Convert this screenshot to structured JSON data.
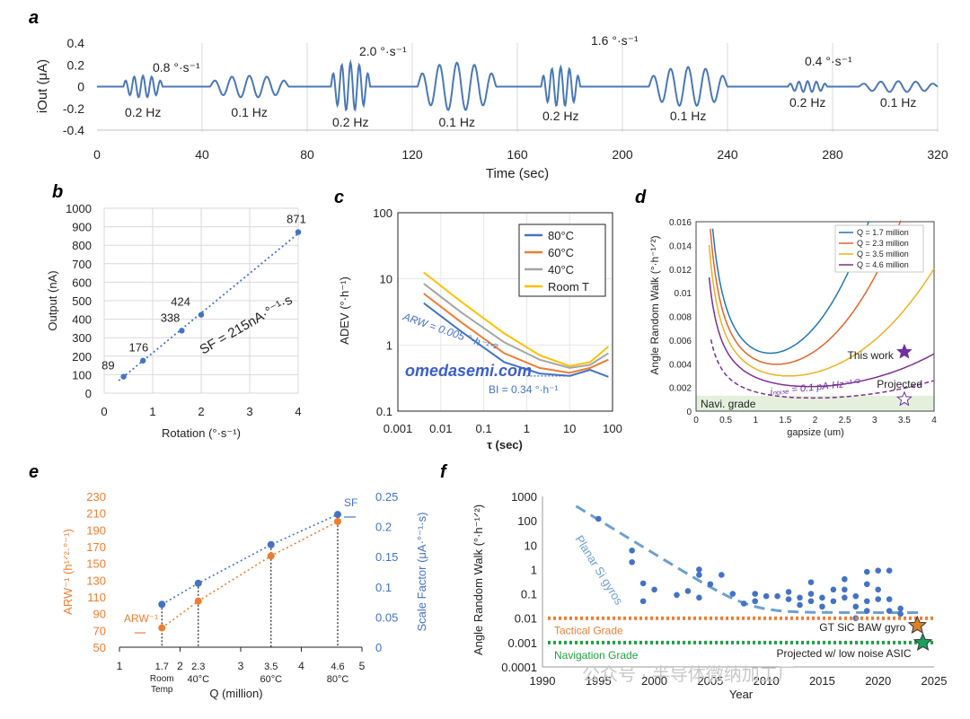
{
  "chart_data": [
    {
      "panel": "a",
      "type": "line",
      "xlabel": "Time (sec)",
      "ylabel": "iOut (μA)",
      "xlim": [
        0,
        320
      ],
      "ylim": [
        -0.4,
        0.4
      ],
      "x_ticks": [
        "0",
        "40",
        "80",
        "120",
        "160",
        "200",
        "240",
        "280",
        "320"
      ],
      "y_ticks": [
        "0.4",
        "0.2",
        "0",
        "-0.2",
        "-0.4"
      ],
      "rate_labels": [
        "0.8 °·s⁻¹",
        "2.0 °·s⁻¹",
        "1.6 °·s⁻¹",
        "0.4 °·s⁻¹"
      ],
      "segments": [
        {
          "start": 10,
          "end": 25,
          "freq_hz": 0.2,
          "amp": 0.1,
          "label": "0.2 Hz"
        },
        {
          "start": 43,
          "end": 73,
          "freq_hz": 0.1,
          "amp": 0.1,
          "label": "0.1 Hz"
        },
        {
          "start": 89,
          "end": 104,
          "freq_hz": 0.2,
          "amp": 0.22,
          "label": "0.2 Hz"
        },
        {
          "start": 122,
          "end": 152,
          "freq_hz": 0.1,
          "amp": 0.22,
          "label": "0.1 Hz"
        },
        {
          "start": 169,
          "end": 184,
          "freq_hz": 0.2,
          "amp": 0.18,
          "label": "0.2 Hz"
        },
        {
          "start": 210,
          "end": 240,
          "freq_hz": 0.1,
          "amp": 0.18,
          "label": "0.1 Hz"
        },
        {
          "start": 263,
          "end": 278,
          "freq_hz": 0.2,
          "amp": 0.05,
          "label": "0.2 Hz"
        },
        {
          "start": 290,
          "end": 320,
          "freq_hz": 0.1,
          "amp": 0.05,
          "label": "0.1 Hz"
        }
      ]
    },
    {
      "panel": "b",
      "type": "scatter",
      "xlabel": "Rotation (°·s⁻¹)",
      "ylabel": "Output (nA)",
      "xlim": [
        0,
        4
      ],
      "ylim": [
        0,
        1000
      ],
      "x_ticks": [
        "0",
        "1",
        "2",
        "3",
        "4"
      ],
      "y_ticks": [
        "1000",
        "900",
        "800",
        "700",
        "600",
        "500",
        "400",
        "300",
        "200",
        "100",
        "0"
      ],
      "x": [
        0.4,
        0.8,
        1.6,
        2.0,
        4.0
      ],
      "y": [
        89,
        176,
        338,
        424,
        871
      ],
      "point_labels": [
        "89",
        "176",
        "338",
        "424",
        "871"
      ],
      "annotation": "SF = 215nA·°⁻¹·s"
    },
    {
      "panel": "c",
      "type": "line",
      "xlabel": "τ (sec)",
      "ylabel": "ADEV (°·h⁻¹)",
      "x_ticks": [
        "0.001",
        "0.01",
        "0.1",
        "1",
        "10",
        "100"
      ],
      "y_ticks": [
        "100",
        "10",
        "1",
        "0.1"
      ],
      "series": [
        {
          "name": "80°C",
          "color": "#4472c4",
          "x": [
            0.004,
            0.03,
            0.3,
            2,
            10,
            30,
            80
          ],
          "y": [
            4.3,
            1.6,
            0.55,
            0.37,
            0.34,
            0.42,
            0.33
          ]
        },
        {
          "name": "60°C",
          "color": "#ed7d31",
          "x": [
            0.004,
            0.03,
            0.3,
            2,
            10,
            30,
            80
          ],
          "y": [
            6,
            2.2,
            0.75,
            0.45,
            0.38,
            0.45,
            0.6
          ]
        },
        {
          "name": "40°C",
          "color": "#a5a5a5",
          "x": [
            0.004,
            0.03,
            0.3,
            2,
            10,
            30,
            80
          ],
          "y": [
            8.5,
            3.1,
            1.1,
            0.6,
            0.45,
            0.5,
            0.75
          ]
        },
        {
          "name": "Room T",
          "color": "#ffc000",
          "x": [
            0.004,
            0.03,
            0.3,
            2,
            10,
            30,
            80
          ],
          "y": [
            12.5,
            4.5,
            1.5,
            0.7,
            0.48,
            0.55,
            0.95
          ]
        }
      ],
      "annotations": [
        "ARW = 0.005 °·h⁻¹ᐟ²",
        "BI = 0.34 °·h⁻¹",
        "omedasemi.com"
      ]
    },
    {
      "panel": "d",
      "type": "line",
      "xlabel": "gapsize (um)",
      "ylabel": "Angle Random Walk (°·h⁻¹ᐟ²)",
      "xlim": [
        0,
        4
      ],
      "ylim": [
        0,
        0.016
      ],
      "x_ticks": [
        "0",
        "0.5",
        "1",
        "1.5",
        "2",
        "2.5",
        "3",
        "3.5",
        "4"
      ],
      "y_ticks": [
        "0.016",
        "0.014",
        "0.012",
        "0.01",
        "0.008",
        "0.006",
        "0.004",
        "0.002",
        "0"
      ],
      "series": [
        {
          "name": "Q = 1.7 million",
          "color": "#1f77b4",
          "a": 0.0042,
          "b": 0.00058,
          "c": 0.0004
        },
        {
          "name": "Q = 2.3 million",
          "color": "#e3642a",
          "a": 0.0036,
          "b": 0.00036,
          "c": 0.0004
        },
        {
          "name": "Q = 3.5 million",
          "color": "#edb120",
          "a": 0.003,
          "b": 0.00017,
          "c": 0.0004
        },
        {
          "name": "Q = 4.6 million",
          "color": "#7e2f8e",
          "a": 0.0024,
          "b": 6e-05,
          "c": 0.0004
        }
      ],
      "points": [
        {
          "label": "This work",
          "x": 3.5,
          "y": 0.005
        },
        {
          "label": "Projected",
          "x": 3.5,
          "y": 0.001
        }
      ],
      "annotations": [
        "iₙₒᵢₛₑ = 0.1 pA·Hz⁻¹ᐟ²",
        "Navi. grade"
      ]
    },
    {
      "panel": "e",
      "type": "scatter",
      "xlabel": "Q (million)",
      "ylabel_left": "ARW⁻¹ (h¹ᐟ²·°⁻¹)",
      "ylabel_right": "Scale Factor (μA·°⁻¹·s)",
      "xlim": [
        1,
        5
      ],
      "ylim_left": [
        50,
        230
      ],
      "ylim_right": [
        0,
        0.25
      ],
      "x_ticks": [
        "1",
        "2",
        "3",
        "4",
        "5"
      ],
      "y_ticks_left": [
        "230",
        "210",
        "190",
        "170",
        "150",
        "130",
        "110",
        "90",
        "70",
        "50"
      ],
      "y_ticks_right": [
        "0.25",
        "0.2",
        "0.15",
        "0.1",
        "0.05",
        "0"
      ],
      "q_labels": [
        "1.7",
        "2.3",
        "3.5",
        "4.6"
      ],
      "temp_labels": [
        "Room Temp",
        "40°C",
        "60°C",
        "80°C"
      ],
      "series": [
        {
          "name": "ARW⁻¹",
          "axis": "left",
          "color": "#ed7d31",
          "x": [
            1.7,
            2.3,
            3.5,
            4.6
          ],
          "y": [
            73,
            105,
            159,
            200
          ]
        },
        {
          "name": "SF",
          "axis": "right",
          "color": "#4472c4",
          "x": [
            1.7,
            2.3,
            3.5,
            4.6
          ],
          "y": [
            0.071,
            0.106,
            0.17,
            0.22
          ]
        }
      ]
    },
    {
      "panel": "f",
      "type": "scatter",
      "xlabel": "Year",
      "ylabel": "Angle Random Walk (°·h⁻¹ᐟ²)",
      "xlim": [
        1990,
        2025
      ],
      "ylim": [
        0.0001,
        1000
      ],
      "x_ticks": [
        "1990",
        "1995",
        "2000",
        "2005",
        "2010",
        "2015",
        "2020",
        "2025"
      ],
      "y_ticks": [
        "1000",
        "100",
        "10",
        "1",
        "0.1",
        "0.01",
        "0.001",
        "0.0001"
      ],
      "points": [
        [
          1995,
          120
        ],
        [
          1998,
          6
        ],
        [
          1998,
          2
        ],
        [
          1999,
          0.27
        ],
        [
          1999,
          0.05
        ],
        [
          2000,
          0.15
        ],
        [
          2002,
          0.09
        ],
        [
          2003,
          0.13
        ],
        [
          2004,
          1
        ],
        [
          2004,
          0.6
        ],
        [
          2004,
          0.07
        ],
        [
          2005,
          0.25
        ],
        [
          2006,
          0.6
        ],
        [
          2007,
          0.1
        ],
        [
          2008,
          0.04
        ],
        [
          2009,
          0.1
        ],
        [
          2009,
          0.05
        ],
        [
          2010,
          0.08
        ],
        [
          2011,
          0.08
        ],
        [
          2012,
          0.06
        ],
        [
          2013,
          0.07
        ],
        [
          2013,
          0.035
        ],
        [
          2014,
          0.3
        ],
        [
          2014,
          0.1
        ],
        [
          2014,
          0.05
        ],
        [
          2015,
          0.07
        ],
        [
          2015,
          0.03
        ],
        [
          2016,
          0.15
        ],
        [
          2016,
          0.05
        ],
        [
          2017,
          0.4
        ],
        [
          2017,
          0.15
        ],
        [
          2017,
          0.07
        ],
        [
          2018,
          0.08
        ],
        [
          2018,
          0.03
        ],
        [
          2019,
          0.8
        ],
        [
          2019,
          0.25
        ],
        [
          2019,
          0.05
        ],
        [
          2019,
          0.02
        ],
        [
          2020,
          0.9
        ],
        [
          2020,
          0.15
        ],
        [
          2020,
          0.06
        ],
        [
          2021,
          0.9
        ],
        [
          2021,
          0.06
        ],
        [
          2021,
          0.02
        ],
        [
          2022,
          0.025
        ],
        [
          2022,
          0.015
        ],
        [
          2018,
          0.01
        ],
        [
          2012,
          0.12
        ]
      ],
      "trend_label": "Planar Si gyros",
      "tactical_grade": {
        "label": "Tactical Grade",
        "value": 0.01,
        "color": "#ed7d31"
      },
      "navigation_grade": {
        "label": "Navigation Grade",
        "value": 0.001,
        "color": "#20a040"
      },
      "stars": [
        {
          "label": "GT SiC BAW gyro",
          "x": 2023.5,
          "y": 0.005,
          "color": "#d9822b"
        },
        {
          "label": "Projected w/ low noise ASIC",
          "x": 2024,
          "y": 0.001,
          "color": "#1aa05a"
        }
      ],
      "watermark": "公众号 · 半导体微纳加工厂"
    }
  ],
  "panel_letters": [
    "a",
    "b",
    "c",
    "d",
    "e",
    "f"
  ]
}
